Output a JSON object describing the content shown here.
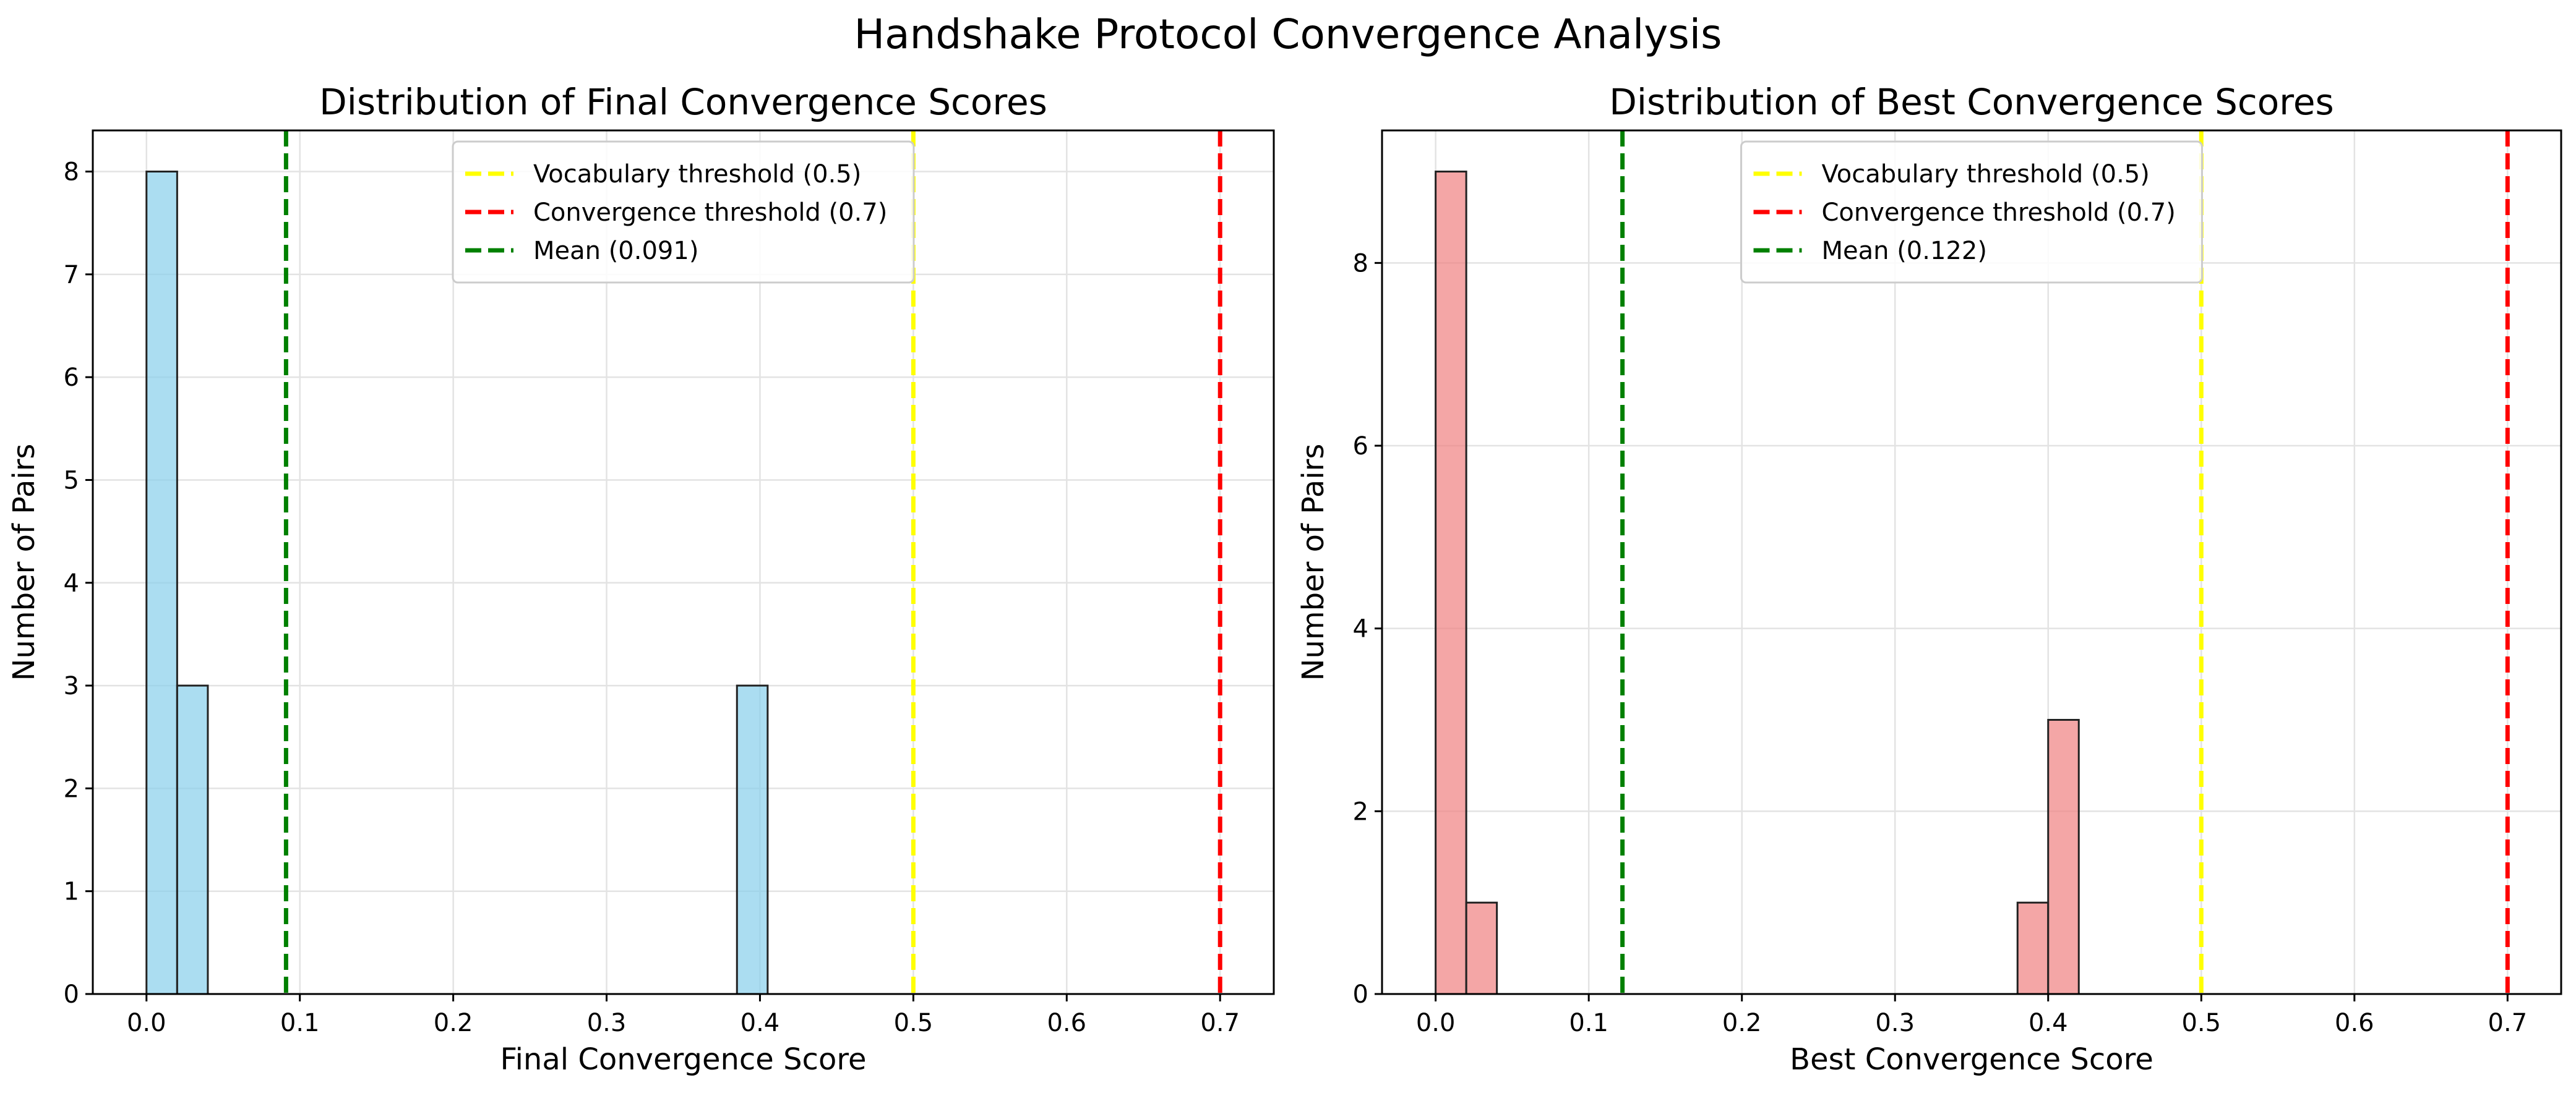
{
  "figure": {
    "suptitle": "Handshake Protocol Convergence Analysis"
  },
  "chart_data": [
    {
      "type": "histogram",
      "title": "Distribution of Final Convergence Scores",
      "xlabel": "Final Convergence Score",
      "ylabel": "Number of Pairs",
      "xlim": [
        -0.035,
        0.735
      ],
      "ylim": [
        0,
        8.4
      ],
      "xticks": [
        "0.0",
        "0.1",
        "0.2",
        "0.3",
        "0.4",
        "0.5",
        "0.6",
        "0.7"
      ],
      "yticks": [
        "0",
        "1",
        "2",
        "3",
        "4",
        "5",
        "6",
        "7",
        "8"
      ],
      "grid": true,
      "legend_position": "upper center",
      "bars": [
        {
          "x0": 0.0,
          "x1": 0.02,
          "count": 8
        },
        {
          "x0": 0.02,
          "x1": 0.04,
          "count": 3
        },
        {
          "x0": 0.385,
          "x1": 0.405,
          "count": 3
        }
      ],
      "bar_color": "#87CEEB",
      "reference_lines": [
        {
          "label": "Vocabulary threshold (0.5)",
          "x": 0.5,
          "color": "#FFFF00"
        },
        {
          "label": "Convergence threshold (0.7)",
          "x": 0.7,
          "color": "#FF0000"
        },
        {
          "label": "Mean (0.091)",
          "x": 0.091,
          "color": "#008000"
        }
      ]
    },
    {
      "type": "histogram",
      "title": "Distribution of Best Convergence Scores",
      "xlabel": "Best Convergence Score",
      "ylabel": "Number of Pairs",
      "xlim": [
        -0.035,
        0.735
      ],
      "ylim": [
        0,
        9.45
      ],
      "xticks": [
        "0.0",
        "0.1",
        "0.2",
        "0.3",
        "0.4",
        "0.5",
        "0.6",
        "0.7"
      ],
      "yticks": [
        "0",
        "2",
        "4",
        "6",
        "8"
      ],
      "grid": true,
      "legend_position": "upper center",
      "bars": [
        {
          "x0": 0.0,
          "x1": 0.02,
          "count": 9
        },
        {
          "x0": 0.02,
          "x1": 0.04,
          "count": 1
        },
        {
          "x0": 0.38,
          "x1": 0.4,
          "count": 1
        },
        {
          "x0": 0.4,
          "x1": 0.42,
          "count": 3
        }
      ],
      "bar_color": "#F08080",
      "reference_lines": [
        {
          "label": "Vocabulary threshold (0.5)",
          "x": 0.5,
          "color": "#FFFF00"
        },
        {
          "label": "Convergence threshold (0.7)",
          "x": 0.7,
          "color": "#FF0000"
        },
        {
          "label": "Mean (0.122)",
          "x": 0.122,
          "color": "#008000"
        }
      ]
    }
  ]
}
